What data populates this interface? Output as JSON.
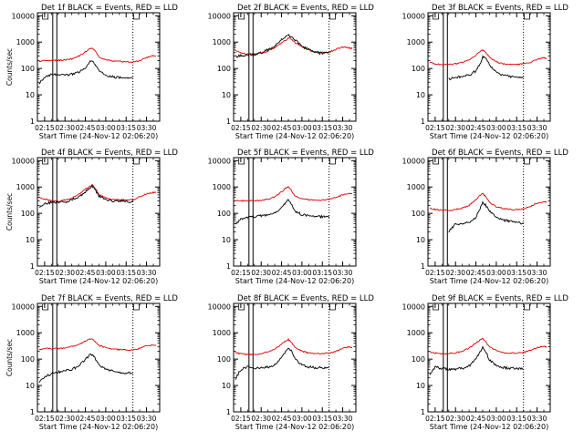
{
  "figure": {
    "common": {
      "type": "line",
      "xlabel": "Start Time (24-Nov-12 02:06:20)",
      "ylabel": "Counts/sec",
      "xticks": [
        "02:15",
        "02:30",
        "02:45",
        "03:00",
        "03:15",
        "03:30",
        "03:45"
      ],
      "yticks": [
        "1",
        "10",
        "100",
        "1000",
        "10000"
      ],
      "x_range_min": [
        9.7,
        99.7
      ],
      "y_log_range": [
        1,
        13000
      ],
      "legend": "none",
      "grid": false,
      "series_colors": {
        "events": "#000000",
        "lld": "#e00000"
      }
    }
  },
  "chart_data": [
    {
      "type": "line",
      "panel": 1,
      "title": "Det 1f BLACK = Events, RED = LLD",
      "xlabel": "Start Time (24-Nov-12 02:06:20)",
      "ylabel": "Counts/sec",
      "yscale": "log",
      "vlines_solid": [
        21,
        24
      ],
      "vlines_dotted": [
        80
      ],
      "x_range": [
        9.7,
        99.7
      ],
      "y_range": [
        1,
        13000
      ],
      "x": [
        11,
        15,
        20,
        25,
        30,
        35,
        40,
        45,
        48,
        50,
        52,
        55,
        60,
        65,
        70,
        75,
        80,
        85,
        90,
        95,
        97
      ],
      "series": [
        {
          "name": "Events",
          "values": [
            28,
            45,
            62,
            58,
            55,
            60,
            72,
            100,
            170,
            195,
            150,
            85,
            55,
            48,
            45,
            42,
            42,
            null,
            null,
            null,
            null
          ]
        },
        {
          "name": "LLD",
          "values": [
            185,
            205,
            205,
            205,
            210,
            230,
            290,
            420,
            560,
            600,
            480,
            270,
            220,
            190,
            185,
            180,
            175,
            200,
            260,
            310,
            290
          ]
        }
      ]
    },
    {
      "type": "line",
      "panel": 2,
      "title": "Det 2f BLACK = Events, RED = LLD",
      "xlabel": "Start Time (24-Nov-12 02:06:20)",
      "ylabel": "",
      "yscale": "log",
      "vlines_solid": [
        21,
        24
      ],
      "vlines_dotted": [
        80
      ],
      "x_range": [
        9.7,
        99.7
      ],
      "y_range": [
        1,
        13000
      ],
      "x": [
        11,
        15,
        20,
        25,
        30,
        35,
        40,
        45,
        48,
        50,
        52,
        55,
        60,
        65,
        70,
        75,
        80,
        85,
        90,
        95,
        97
      ],
      "series": [
        {
          "name": "Events",
          "values": [
            280,
            310,
            330,
            340,
            400,
            520,
            720,
            1200,
            1650,
            1900,
            1500,
            1200,
            700,
            520,
            400,
            370,
            390,
            null,
            null,
            null,
            null
          ]
        },
        {
          "name": "LLD",
          "values": [
            490,
            400,
            350,
            350,
            380,
            460,
            620,
            950,
            1150,
            1450,
            1300,
            950,
            660,
            500,
            430,
            400,
            420,
            530,
            650,
            600,
            580
          ]
        }
      ]
    },
    {
      "type": "line",
      "panel": 3,
      "title": "Det 3f BLACK = Events, RED = LLD",
      "xlabel": "Start Time (24-Nov-12 02:06:20)",
      "ylabel": "",
      "yscale": "log",
      "vlines_solid": [
        21,
        24
      ],
      "vlines_dotted": [
        80
      ],
      "x_range": [
        9.7,
        99.7
      ],
      "y_range": [
        1,
        13000
      ],
      "x": [
        11,
        15,
        20,
        25,
        30,
        35,
        40,
        45,
        48,
        50,
        52,
        55,
        60,
        65,
        70,
        75,
        80,
        85,
        90,
        95,
        97
      ],
      "series": [
        {
          "name": "Events",
          "values": [
            null,
            null,
            null,
            40,
            45,
            50,
            55,
            80,
            150,
            270,
            240,
            140,
            70,
            55,
            50,
            48,
            48,
            null,
            null,
            null,
            null
          ]
        },
        {
          "name": "LLD",
          "values": [
            170,
            150,
            140,
            140,
            150,
            170,
            210,
            320,
            440,
            520,
            420,
            270,
            180,
            150,
            140,
            140,
            150,
            170,
            220,
            260,
            240
          ]
        }
      ]
    },
    {
      "type": "line",
      "panel": 4,
      "title": "Det 4f BLACK = Events, RED = LLD",
      "xlabel": "Start Time (24-Nov-12 02:06:20)",
      "ylabel": "Counts/sec",
      "yscale": "log",
      "vlines_solid": [
        21,
        24
      ],
      "vlines_dotted": [
        80
      ],
      "x_range": [
        9.7,
        99.7
      ],
      "y_range": [
        1,
        13000
      ],
      "x": [
        11,
        15,
        20,
        25,
        30,
        35,
        40,
        45,
        48,
        50,
        52,
        55,
        60,
        65,
        70,
        75,
        80,
        85,
        90,
        95,
        97
      ],
      "series": [
        {
          "name": "Events",
          "values": [
            170,
            240,
            260,
            260,
            270,
            330,
            420,
            650,
            880,
            1050,
            800,
            450,
            330,
            300,
            290,
            280,
            280,
            null,
            null,
            null,
            null
          ]
        },
        {
          "name": "LLD",
          "values": [
            420,
            350,
            300,
            290,
            320,
            380,
            520,
            850,
            1000,
            1200,
            900,
            520,
            380,
            330,
            320,
            320,
            330,
            420,
            560,
            620,
            600
          ]
        }
      ]
    },
    {
      "type": "line",
      "panel": 5,
      "title": "Det 5f BLACK = Events, RED = LLD",
      "xlabel": "Start Time (24-Nov-12 02:06:20)",
      "ylabel": "",
      "yscale": "log",
      "vlines_solid": [
        21,
        24
      ],
      "vlines_dotted": [
        80
      ],
      "x_range": [
        9.7,
        99.7
      ],
      "y_range": [
        1,
        13000
      ],
      "x": [
        11,
        15,
        20,
        25,
        30,
        35,
        40,
        45,
        48,
        50,
        52,
        55,
        60,
        65,
        70,
        75,
        80,
        85,
        90,
        95,
        97
      ],
      "series": [
        {
          "name": "Events",
          "values": [
            40,
            60,
            70,
            75,
            80,
            85,
            100,
            170,
            260,
            320,
            230,
            120,
            90,
            80,
            75,
            75,
            70,
            null,
            null,
            null,
            null
          ]
        },
        {
          "name": "LLD",
          "values": [
            320,
            300,
            300,
            300,
            310,
            340,
            420,
            650,
            880,
            980,
            760,
            450,
            350,
            330,
            320,
            320,
            340,
            400,
            500,
            560,
            530
          ]
        }
      ]
    },
    {
      "type": "line",
      "panel": 6,
      "title": "Det 6f BLACK = Events, RED = LLD",
      "xlabel": "Start Time (24-Nov-12 02:06:20)",
      "ylabel": "",
      "yscale": "log",
      "vlines_solid": [
        21,
        24
      ],
      "vlines_dotted": [
        80
      ],
      "x_range": [
        9.7,
        99.7
      ],
      "y_range": [
        1,
        13000
      ],
      "x": [
        11,
        15,
        20,
        25,
        30,
        35,
        40,
        45,
        48,
        50,
        52,
        55,
        60,
        65,
        70,
        75,
        80,
        85,
        90,
        95,
        97
      ],
      "series": [
        {
          "name": "Events",
          "values": [
            null,
            null,
            null,
            20,
            40,
            40,
            45,
            70,
            150,
            260,
            210,
            120,
            70,
            55,
            50,
            45,
            40,
            null,
            null,
            null,
            null
          ]
        },
        {
          "name": "LLD",
          "values": [
            160,
            140,
            130,
            130,
            140,
            160,
            200,
            330,
            470,
            560,
            440,
            260,
            180,
            150,
            140,
            140,
            150,
            180,
            240,
            280,
            260
          ]
        }
      ]
    },
    {
      "type": "line",
      "panel": 7,
      "title": "Det 7f BLACK = Events, RED = LLD",
      "xlabel": "Start Time (24-Nov-12 02:06:20)",
      "ylabel": "Counts/sec",
      "yscale": "log",
      "vlines_solid": [
        21,
        24
      ],
      "vlines_dotted": [
        80
      ],
      "x_range": [
        9.7,
        99.7
      ],
      "y_range": [
        1,
        13000
      ],
      "x": [
        11,
        15,
        20,
        25,
        30,
        35,
        40,
        45,
        48,
        50,
        52,
        55,
        60,
        65,
        70,
        75,
        80,
        85,
        90,
        95,
        97
      ],
      "series": [
        {
          "name": "Events",
          "values": [
            14,
            22,
            28,
            32,
            36,
            40,
            55,
            95,
            140,
            150,
            110,
            60,
            40,
            35,
            32,
            30,
            30,
            null,
            null,
            null,
            null
          ]
        },
        {
          "name": "LLD",
          "values": [
            230,
            250,
            250,
            250,
            260,
            300,
            360,
            480,
            560,
            580,
            480,
            330,
            270,
            240,
            230,
            220,
            220,
            260,
            320,
            340,
            330
          ]
        }
      ]
    },
    {
      "type": "line",
      "panel": 8,
      "title": "Det 8f BLACK = Events, RED = LLD",
      "xlabel": "Start Time (24-Nov-12 02:06:20)",
      "ylabel": "",
      "yscale": "log",
      "vlines_solid": [
        21,
        24
      ],
      "vlines_dotted": [
        80
      ],
      "x_range": [
        9.7,
        99.7
      ],
      "y_range": [
        1,
        13000
      ],
      "x": [
        11,
        15,
        20,
        25,
        30,
        35,
        40,
        45,
        48,
        50,
        52,
        55,
        60,
        65,
        70,
        75,
        80,
        85,
        90,
        95,
        97
      ],
      "series": [
        {
          "name": "Events",
          "values": [
            18,
            40,
            50,
            45,
            48,
            50,
            60,
            110,
            190,
            280,
            210,
            100,
            60,
            50,
            48,
            47,
            48,
            null,
            null,
            null,
            null
          ]
        },
        {
          "name": "LLD",
          "values": [
            180,
            160,
            150,
            150,
            160,
            190,
            240,
            370,
            490,
            560,
            440,
            270,
            200,
            170,
            160,
            160,
            170,
            200,
            260,
            290,
            280
          ]
        }
      ]
    },
    {
      "type": "line",
      "panel": 9,
      "title": "Det 9f BLACK = Events, RED = LLD",
      "xlabel": "Start Time (24-Nov-12 02:06:20)",
      "ylabel": "",
      "yscale": "log",
      "vlines_solid": [
        21,
        24
      ],
      "vlines_dotted": [
        80
      ],
      "x_range": [
        9.7,
        99.7
      ],
      "y_range": [
        1,
        13000
      ],
      "x": [
        11,
        15,
        20,
        25,
        30,
        35,
        40,
        45,
        48,
        50,
        52,
        55,
        60,
        65,
        70,
        75,
        80,
        85,
        90,
        95,
        97
      ],
      "series": [
        {
          "name": "Events",
          "values": [
            25,
            50,
            45,
            40,
            42,
            45,
            55,
            100,
            180,
            270,
            200,
            95,
            55,
            48,
            45,
            44,
            42,
            null,
            null,
            null,
            null
          ]
        },
        {
          "name": "LLD",
          "values": [
            190,
            170,
            160,
            160,
            170,
            200,
            260,
            400,
            520,
            600,
            470,
            290,
            210,
            180,
            170,
            170,
            180,
            210,
            270,
            300,
            290
          ]
        }
      ]
    }
  ]
}
